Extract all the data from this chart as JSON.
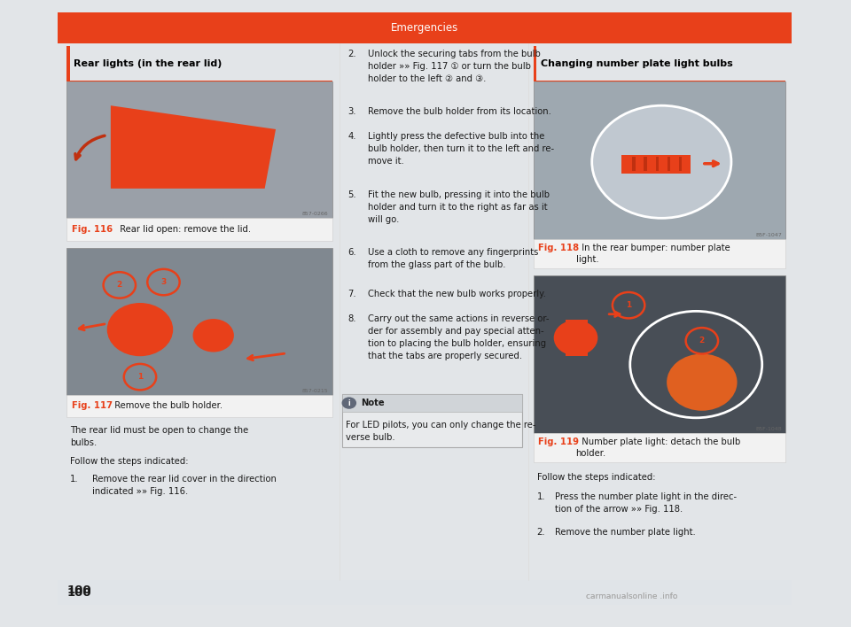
{
  "page_bg": "#e2e5e8",
  "content_bg": "#ffffff",
  "header_color": "#e8401a",
  "header_text": "Emergencies",
  "header_text_color": "#ffffff",
  "header_font_size": 8.5,
  "left_section_title": "Rear lights (in the rear lid)",
  "right_section_title": "Changing number plate light bulbs",
  "section_title_font_size": 8.0,
  "section_title_color": "#000000",
  "accent_color": "#e8401a",
  "fig116_caption_bold": "Fig. 116",
  "fig116_caption_rest": "  Rear lid open: remove the lid.",
  "fig117_caption_bold": "Fig. 117",
  "fig117_caption_rest": "  Remove the bulb holder.",
  "fig118_caption_bold": "Fig. 118",
  "fig118_caption_rest": "  In the rear bumper: number plate\nlight.",
  "fig119_caption_bold": "Fig. 119",
  "fig119_caption_rest": "  Number plate light: detach the bulb\nholder.",
  "para1": "The rear lid must be open to change the\nbulbs.",
  "para2": "Follow the steps indicated:",
  "step1_num": "1.",
  "step1_text": "Remove the rear lid cover in the direction\nindicated »» Fig. 116.",
  "middle_steps": [
    {
      "num": "2.",
      "text": "Unlock the securing tabs from the bulb\nholder »» Fig. 117 ① or turn the bulb\nholder to the left ② and ③."
    },
    {
      "num": "3.",
      "text": "Remove the bulb holder from its location."
    },
    {
      "num": "4.",
      "text": "Lightly press the defective bulb into the\nbulb holder, then turn it to the left and re-\nmove it."
    },
    {
      "num": "5.",
      "text": "Fit the new bulb, pressing it into the bulb\nholder and turn it to the right as far as it\nwill go."
    },
    {
      "num": "6.",
      "text": "Use a cloth to remove any fingerprints\nfrom the glass part of the bulb."
    },
    {
      "num": "7.",
      "text": "Check that the new bulb works properly."
    },
    {
      "num": "8.",
      "text": "Carry out the same actions in reverse or-\nder for assembly and pay special atten-\ntion to placing the bulb holder, ensuring\nthat the tabs are properly secured."
    }
  ],
  "note_icon": "i",
  "note_label": "Note",
  "note_text": "For LED pilots, you can only change the re-\nverse bulb.",
  "right_steps_title": "Follow the steps indicated:",
  "right_step1_num": "1.",
  "right_step1_text": "Press the number plate light in the direc-\ntion of the arrow »» Fig. 118.",
  "right_step2_num": "2.",
  "right_step2_text": "Remove the number plate light.",
  "page_number": "100",
  "watermark": "carmanualsonline .info",
  "step_font_size": 7.2,
  "caption_font_size": 7.2,
  "note_bg": "#e8eaec",
  "note_border": "#aaaaaa",
  "img116_color": "#9aa0a8",
  "img117_color": "#808890",
  "img118_color": "#9ea8b0",
  "img119_color": "#484e56",
  "caption_bg": "#f2f2f2",
  "caption_border": "#cccccc"
}
